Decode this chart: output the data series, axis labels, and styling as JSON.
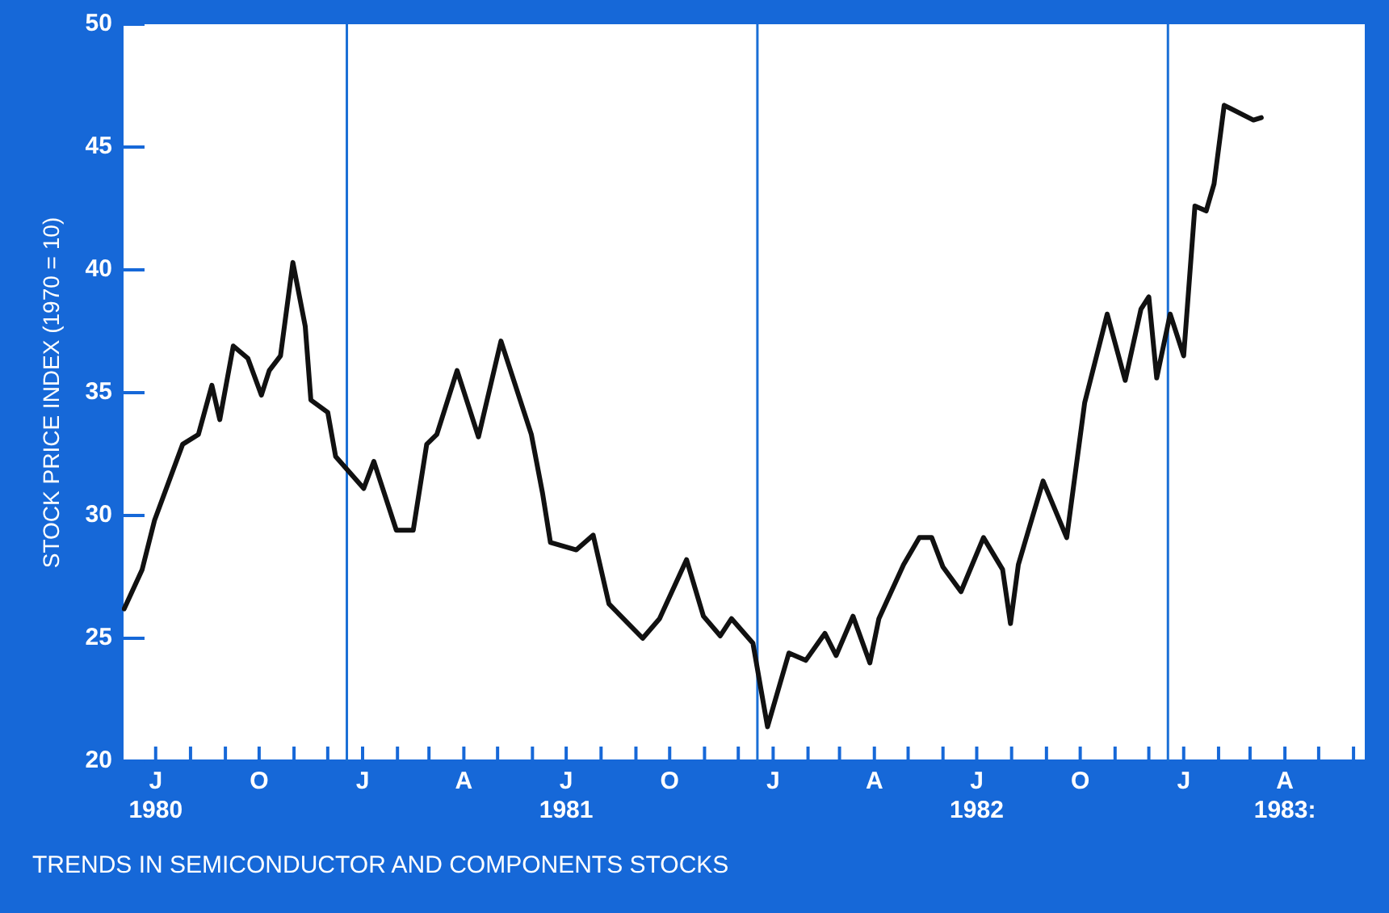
{
  "chart_data": {
    "type": "line",
    "title": "TRENDS IN SEMICONDUCTOR AND COMPONENTS STOCKS",
    "ylabel": "STOCK PRICE INDEX (1970 = 10)",
    "x": [
      "1980-06-17",
      "1980-07-03",
      "1980-07-14",
      "1980-08-08",
      "1980-08-22",
      "1980-09-03",
      "1980-09-10",
      "1980-09-22",
      "1980-10-05",
      "1980-10-17",
      "1980-10-24",
      "1980-11-03",
      "1980-11-14",
      "1980-11-25",
      "1980-11-30",
      "1980-12-15",
      "1980-12-22",
      "1981-01-16",
      "1981-01-25",
      "1981-02-14",
      "1981-03-01",
      "1981-03-13",
      "1981-03-22",
      "1981-04-09",
      "1981-04-28",
      "1981-05-18",
      "1981-06-14",
      "1981-06-24",
      "1981-07-01",
      "1981-07-24",
      "1981-08-08",
      "1981-08-22",
      "1981-09-21",
      "1981-10-06",
      "1981-10-30",
      "1981-11-14",
      "1981-11-29",
      "1981-12-09",
      "1981-12-28",
      "1982-01-10",
      "1982-01-29",
      "1982-02-13",
      "1982-03-02",
      "1982-03-12",
      "1982-03-27",
      "1982-04-11",
      "1982-04-19",
      "1982-05-11",
      "1982-05-25",
      "1982-06-05",
      "1982-06-15",
      "1982-07-01",
      "1982-07-21",
      "1982-08-07",
      "1982-08-14",
      "1982-08-21",
      "1982-09-12",
      "1982-10-03",
      "1982-10-19",
      "1982-11-08",
      "1982-11-24",
      "1982-12-08",
      "1982-12-15",
      "1982-12-22",
      "1983-01-03",
      "1983-01-15",
      "1983-01-25",
      "1983-02-04",
      "1983-02-11",
      "1983-02-20",
      "1983-03-18",
      "1983-03-25"
    ],
    "series": [
      {
        "color": "#111111",
        "values": [
          26.2,
          27.8,
          29.8,
          32.9,
          33.3,
          35.3,
          33.9,
          36.9,
          36.4,
          34.9,
          35.9,
          36.5,
          40.3,
          37.7,
          34.7,
          34.2,
          32.4,
          31.1,
          32.2,
          29.4,
          29.4,
          32.9,
          33.3,
          35.9,
          33.2,
          37.1,
          33.3,
          30.9,
          28.9,
          28.6,
          29.2,
          26.4,
          25.0,
          25.8,
          28.2,
          25.9,
          25.1,
          25.8,
          24.8,
          21.4,
          24.4,
          24.1,
          25.2,
          24.3,
          25.9,
          24.0,
          25.8,
          28.0,
          29.1,
          29.1,
          27.9,
          26.9,
          29.1,
          27.8,
          25.6,
          28.0,
          31.4,
          29.1,
          34.6,
          38.2,
          35.5,
          38.4,
          38.9,
          35.6,
          38.2,
          36.5,
          42.6,
          42.4,
          43.5,
          46.7,
          46.1,
          46.2
        ]
      }
    ],
    "xlim": [
      "1980-06-15",
      "1983-06-25"
    ],
    "xticks": [
      {
        "value": "1980-07-15",
        "label": "J\n1980"
      },
      {
        "value": "1980-08-15",
        "label": null
      },
      {
        "value": "1980-09-15",
        "label": null
      },
      {
        "value": "1980-10-15",
        "label": "O"
      },
      {
        "value": "1980-11-15",
        "label": null
      },
      {
        "value": "1980-12-15",
        "label": null
      },
      {
        "value": "1981-01-15",
        "label": "J"
      },
      {
        "value": "1981-02-15",
        "label": null
      },
      {
        "value": "1981-03-15",
        "label": null
      },
      {
        "value": "1981-04-15",
        "label": "A"
      },
      {
        "value": "1981-05-15",
        "label": null
      },
      {
        "value": "1981-06-15",
        "label": null
      },
      {
        "value": "1981-07-15",
        "label": "J\n1981"
      },
      {
        "value": "1981-08-15",
        "label": null
      },
      {
        "value": "1981-09-15",
        "label": null
      },
      {
        "value": "1981-10-15",
        "label": "O"
      },
      {
        "value": "1981-11-15",
        "label": null
      },
      {
        "value": "1981-12-15",
        "label": null
      },
      {
        "value": "1982-01-15",
        "label": "J"
      },
      {
        "value": "1982-02-15",
        "label": null
      },
      {
        "value": "1982-03-15",
        "label": null
      },
      {
        "value": "1982-04-15",
        "label": "A"
      },
      {
        "value": "1982-05-15",
        "label": null
      },
      {
        "value": "1982-06-15",
        "label": null
      },
      {
        "value": "1982-07-15",
        "label": "J\n1982"
      },
      {
        "value": "1982-08-15",
        "label": null
      },
      {
        "value": "1982-09-15",
        "label": null
      },
      {
        "value": "1982-10-15",
        "label": "O"
      },
      {
        "value": "1982-11-15",
        "label": null
      },
      {
        "value": "1982-12-15",
        "label": null
      },
      {
        "value": "1983-01-15",
        "label": "J"
      },
      {
        "value": "1983-02-15",
        "label": null
      },
      {
        "value": "1983-03-15",
        "label": null
      },
      {
        "value": "1983-04-15",
        "label": "A\n1983:"
      },
      {
        "value": "1983-05-15",
        "label": null
      },
      {
        "value": "1983-06-15",
        "label": null
      }
    ],
    "ylim": [
      20,
      50
    ],
    "yticks": [
      20,
      25,
      30,
      35,
      40,
      45,
      50
    ],
    "ref_lines": [
      {
        "axis": "x",
        "value": "1981-01-01",
        "color": "#1a6fd6"
      },
      {
        "axis": "x",
        "value": "1982-01-01",
        "color": "#1a6fd6"
      },
      {
        "axis": "x",
        "value": "1983-01-01",
        "color": "#1a6fd6"
      }
    ],
    "grid": false,
    "legend": false,
    "marker": "none",
    "line_style": "solid"
  }
}
